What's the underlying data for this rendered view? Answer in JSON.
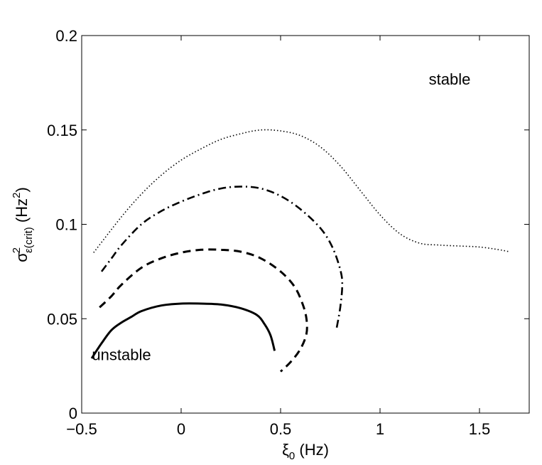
{
  "chart_data": {
    "type": "line",
    "title": "",
    "xlabel": {
      "base": "ξ",
      "sub": "0",
      "suffix": " (Hz)"
    },
    "ylabel": {
      "base": "σ",
      "sup": "2",
      "sub": "ε(crit)",
      "suffix": " (Hz",
      "suffix_sup": "2",
      "close": ")"
    },
    "xlim": [
      -0.5,
      1.75
    ],
    "ylim": [
      0,
      0.2
    ],
    "xticks": [
      -0.5,
      0,
      0.5,
      1,
      1.5
    ],
    "xtick_labels": [
      "−0.5",
      "0",
      "0.5",
      "1",
      "1.5"
    ],
    "yticks": [
      0,
      0.05,
      0.1,
      0.15,
      0.2
    ],
    "ytick_labels": [
      "0",
      "0.05",
      "0.1",
      "0.15",
      "0.2"
    ],
    "grid": false,
    "legend": "none",
    "annotations": [
      {
        "text": "stable",
        "x": 1.35,
        "y": 0.174
      },
      {
        "text": "unstable",
        "x": -0.3,
        "y": 0.028
      }
    ],
    "series": [
      {
        "style": "solid",
        "x": [
          -0.45,
          -0.4,
          -0.35,
          -0.3,
          -0.25,
          -0.2,
          -0.1,
          0.0,
          0.1,
          0.2,
          0.3,
          0.38,
          0.42,
          0.45,
          0.47
        ],
        "y": [
          0.029,
          0.037,
          0.044,
          0.048,
          0.051,
          0.054,
          0.057,
          0.058,
          0.058,
          0.0575,
          0.0555,
          0.052,
          0.047,
          0.041,
          0.033
        ]
      },
      {
        "style": "dashed",
        "x": [
          -0.41,
          -0.35,
          -0.3,
          -0.2,
          -0.1,
          0.0,
          0.1,
          0.2,
          0.3,
          0.4,
          0.5,
          0.57,
          0.61,
          0.63,
          0.63,
          0.6,
          0.55,
          0.5
        ],
        "y": [
          0.056,
          0.062,
          0.068,
          0.077,
          0.082,
          0.085,
          0.0865,
          0.0865,
          0.0855,
          0.082,
          0.075,
          0.067,
          0.058,
          0.05,
          0.042,
          0.034,
          0.027,
          0.022
        ]
      },
      {
        "style": "dashdot",
        "x": [
          -0.4,
          -0.35,
          -0.3,
          -0.2,
          -0.1,
          0.0,
          0.1,
          0.2,
          0.3,
          0.4,
          0.5,
          0.6,
          0.7,
          0.76,
          0.8,
          0.81,
          0.8,
          0.78
        ],
        "y": [
          0.075,
          0.082,
          0.089,
          0.1,
          0.107,
          0.112,
          0.116,
          0.119,
          0.12,
          0.119,
          0.115,
          0.108,
          0.098,
          0.088,
          0.076,
          0.068,
          0.056,
          0.044
        ]
      },
      {
        "style": "dotted",
        "x": [
          -0.44,
          -0.3,
          -0.2,
          -0.1,
          0.0,
          0.1,
          0.2,
          0.3,
          0.4,
          0.5,
          0.6,
          0.7,
          0.8,
          0.9,
          1.0,
          1.1,
          1.2,
          1.3,
          1.4,
          1.5,
          1.6,
          1.65
        ],
        "y": [
          0.085,
          0.104,
          0.116,
          0.126,
          0.134,
          0.14,
          0.145,
          0.148,
          0.15,
          0.1495,
          0.147,
          0.141,
          0.131,
          0.118,
          0.105,
          0.095,
          0.09,
          0.089,
          0.0885,
          0.088,
          0.0865,
          0.0855
        ]
      }
    ],
    "colors": {
      "line": "#000000",
      "axis": "#000000",
      "background": "#ffffff"
    }
  }
}
